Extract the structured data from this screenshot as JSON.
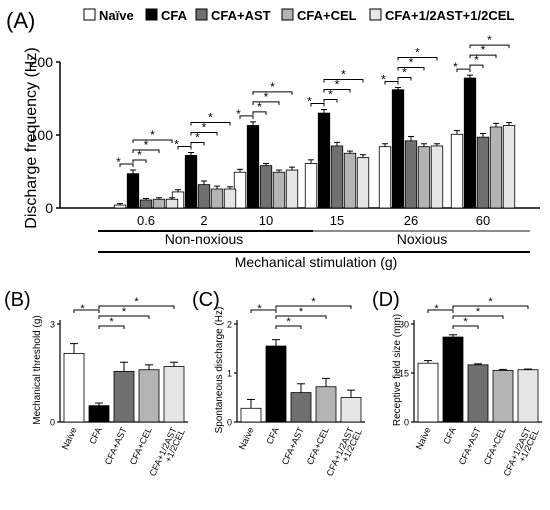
{
  "colors": {
    "naive": "#ffffff",
    "cfa": "#000000",
    "cfa_ast": "#707070",
    "cfa_cel": "#b4b4b4",
    "cfa_half": "#e6e6e6",
    "noxious_line": "#8c8c8c"
  },
  "legend": [
    "Naïve",
    "CFA",
    "CFA+AST",
    "CFA+CEL",
    "CFA+1/2AST+1/2CEL"
  ],
  "panel_a": {
    "panel_label": "(A)",
    "ylabel": "Discharge frequency (Hz)",
    "y_ticks": [
      "0",
      "100",
      "200"
    ],
    "x_categories": [
      "0.6",
      "2",
      "10",
      "15",
      "26",
      "60"
    ],
    "range_labels": [
      "Non-noxious",
      "Noxious"
    ],
    "xlabel": "Mechanical stimulation (g)"
  },
  "panel_b": {
    "panel_label": "(B)",
    "ylabel": "Mechanical threshold (g)",
    "y_ticks": [
      "0",
      "3"
    ],
    "x_labels": [
      "Naïve",
      "CFA",
      "CFA+AST",
      "CFA+CEL",
      "CFA+1/2AST +1/2CEL"
    ]
  },
  "panel_c": {
    "panel_label": "(C)",
    "ylabel": "Spontaneous discharge (Hz)",
    "y_ticks": [
      "0",
      "1",
      "2"
    ],
    "x_labels": [
      "Naïve",
      "CFA",
      "CFA+AST",
      "CFA+CEL",
      "CFA+1/2AST +1/2CEL"
    ]
  },
  "panel_d": {
    "panel_label": "(D)",
    "ylabel": "Receptive field size (mm)",
    "y_ticks": [
      "0",
      "15",
      "30"
    ],
    "x_labels": [
      "Naïve",
      "CFA",
      "CFA+AST",
      "CFA+CEL",
      "CFA+1/2AST +1/2CEL"
    ]
  },
  "sig_marker": "*",
  "chart_data": [
    {
      "type": "bar",
      "id": "A",
      "categories": [
        "0.6",
        "2",
        "10",
        "15",
        "26",
        "60"
      ],
      "ylim": [
        0,
        200
      ],
      "ylabel": "Discharge frequency (Hz)",
      "xlabel": "Mechanical stimulation (g)",
      "series": [
        {
          "name": "Naïve",
          "values": [
            4,
            22,
            49,
            61,
            84,
            101
          ],
          "errors": [
            2,
            3,
            4,
            5,
            4,
            5
          ]
        },
        {
          "name": "CFA",
          "values": [
            47,
            72,
            113,
            130,
            162,
            178
          ],
          "errors": [
            5,
            4,
            5,
            5,
            3,
            4
          ]
        },
        {
          "name": "CFA+AST",
          "values": [
            11,
            32,
            58,
            85,
            92,
            97
          ],
          "errors": [
            2,
            5,
            3,
            5,
            6,
            5
          ]
        },
        {
          "name": "CFA+CEL",
          "values": [
            12,
            26,
            49,
            75,
            84,
            111
          ],
          "errors": [
            2,
            4,
            3,
            3,
            4,
            5
          ]
        },
        {
          "name": "CFA+1/2AST+1/2CEL",
          "values": [
            12,
            26,
            52,
            69,
            85,
            113
          ],
          "errors": [
            2,
            3,
            4,
            4,
            3,
            4
          ]
        }
      ]
    },
    {
      "type": "bar",
      "id": "B",
      "categories": [
        "Naïve",
        "CFA",
        "CFA+AST",
        "CFA+CEL",
        "CFA+1/2AST +1/2CEL"
      ],
      "values": [
        2.1,
        0.5,
        1.55,
        1.6,
        1.7
      ],
      "errors": [
        0.3,
        0.08,
        0.28,
        0.15,
        0.13
      ],
      "ylim": [
        0,
        3
      ],
      "ylabel": "Mechanical threshold (g)"
    },
    {
      "type": "bar",
      "id": "C",
      "categories": [
        "Naïve",
        "CFA",
        "CFA+AST",
        "CFA+CEL",
        "CFA+1/2AST +1/2CEL"
      ],
      "values": [
        0.28,
        1.55,
        0.6,
        0.72,
        0.5
      ],
      "errors": [
        0.18,
        0.13,
        0.18,
        0.17,
        0.15
      ],
      "ylim": [
        0,
        2
      ],
      "ylabel": "Spontaneous discharge (Hz)"
    },
    {
      "type": "bar",
      "id": "D",
      "categories": [
        "Naïve",
        "CFA",
        "CFA+AST",
        "CFA+CEL",
        "CFA+1/2AST +1/2CEL"
      ],
      "values": [
        18,
        26,
        17.5,
        15.8,
        16
      ],
      "errors": [
        0.8,
        0.7,
        0.3,
        0.3,
        0.2
      ],
      "ylim": [
        0,
        30
      ],
      "ylabel": "Receptive field size (mm)"
    }
  ]
}
